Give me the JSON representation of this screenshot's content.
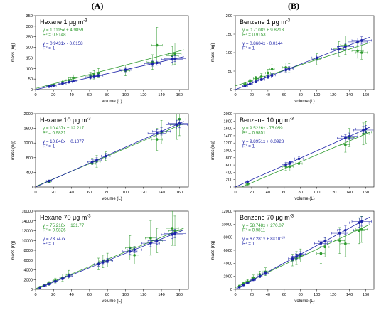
{
  "figure": {
    "col_a": "(A)",
    "col_b": "(B)"
  },
  "colors": {
    "green": "#2e9a2e",
    "blue": "#1c23a8"
  },
  "chart_data": [
    {
      "type": "scatter",
      "title": "Hexane 1 μg m",
      "title_sup": "-3",
      "xlabel": "volume (L)",
      "ylabel": "mass (ng)",
      "xlim": [
        0,
        170
      ],
      "ylim": [
        0,
        350
      ],
      "xticks": [
        0,
        20,
        40,
        60,
        80,
        100,
        120,
        140,
        160
      ],
      "yticks": [
        0,
        50,
        100,
        150,
        200,
        250,
        300,
        350
      ],
      "equations": [
        {
          "text": "y = 1.1115x + 4.9859",
          "color": "green"
        },
        {
          "text": "R² = 0.9148",
          "color": "green"
        },
        {
          "text": "y = 0.9431x - 0.0158",
          "color": "blue"
        },
        {
          "text": "R² = 1",
          "color": "blue"
        }
      ],
      "series": [
        {
          "color": "green",
          "fit": [
            1.1115,
            4.9859
          ],
          "x": [
            15,
            20,
            30,
            37,
            42,
            61,
            65,
            70,
            100,
            130,
            135,
            152,
            155
          ],
          "y": [
            17,
            22,
            35,
            44,
            55,
            64,
            70,
            78,
            90,
            130,
            210,
            160,
            170
          ],
          "xerr": [
            2,
            2,
            3,
            3,
            3,
            4,
            4,
            4,
            5,
            6,
            6,
            7,
            7
          ],
          "yerr": [
            5,
            6,
            10,
            12,
            15,
            18,
            20,
            22,
            25,
            35,
            85,
            45,
            50
          ]
        },
        {
          "color": "blue",
          "fit": [
            0.9431,
            -0.0158
          ],
          "x": [
            15,
            20,
            30,
            37,
            42,
            61,
            65,
            70,
            100,
            130,
            135,
            152,
            155
          ],
          "y": [
            14,
            19,
            28,
            35,
            40,
            58,
            61,
            66,
            94,
            123,
            127,
            143,
            146
          ],
          "xerr": [
            3,
            3,
            4,
            4,
            4,
            5,
            5,
            5,
            6,
            9,
            10,
            12,
            12
          ],
          "yerr": [
            3,
            3,
            4,
            4,
            5,
            7,
            7,
            8,
            10,
            12,
            12,
            14,
            14
          ]
        }
      ]
    },
    {
      "type": "scatter",
      "title": "Benzene 1 μg m",
      "title_sup": "-3",
      "xlabel": "volume (L)",
      "ylabel": "mass (ng)",
      "xlim": [
        0,
        170
      ],
      "ylim": [
        0,
        200
      ],
      "xticks": [
        0,
        20,
        40,
        60,
        80,
        100,
        120,
        140,
        160
      ],
      "yticks": [
        0,
        50,
        100,
        150,
        200
      ],
      "equations": [
        {
          "text": "y = 0.7108x + 9.8213",
          "color": "green"
        },
        {
          "text": "R² = 0.9153",
          "color": "green"
        },
        {
          "text": "y = 0.8604x - 0.0144",
          "color": "blue"
        },
        {
          "text": "R² = 1",
          "color": "blue"
        }
      ],
      "series": [
        {
          "color": "green",
          "fit": [
            0.7108,
            9.8213
          ],
          "x": [
            12,
            18,
            25,
            32,
            40,
            45,
            62,
            66,
            100,
            127,
            135,
            150,
            155
          ],
          "y": [
            14,
            22,
            30,
            35,
            45,
            55,
            60,
            58,
            82,
            110,
            120,
            105,
            100
          ],
          "xerr": [
            2,
            2,
            3,
            3,
            3,
            3,
            4,
            4,
            5,
            6,
            6,
            7,
            7
          ],
          "yerr": [
            4,
            5,
            6,
            8,
            10,
            12,
            12,
            12,
            15,
            20,
            25,
            20,
            18
          ]
        },
        {
          "color": "blue",
          "fit": [
            0.8604,
            -0.0144
          ],
          "x": [
            12,
            18,
            25,
            32,
            40,
            45,
            62,
            66,
            100,
            127,
            135,
            150,
            155
          ],
          "y": [
            10,
            15,
            21,
            27,
            34,
            39,
            53,
            57,
            86,
            109,
            116,
            129,
            133
          ],
          "xerr": [
            3,
            3,
            4,
            4,
            4,
            4,
            5,
            5,
            6,
            9,
            10,
            12,
            12
          ],
          "yerr": [
            2,
            2,
            3,
            3,
            4,
            4,
            5,
            5,
            7,
            8,
            9,
            10,
            10
          ]
        }
      ]
    },
    {
      "type": "scatter",
      "title": "Hexane 10 μg m",
      "title_sup": "-3",
      "xlabel": "volume (L)",
      "ylabel": "mass (ng)",
      "xlim": [
        0,
        170
      ],
      "ylim": [
        0,
        2000
      ],
      "xticks": [
        0,
        20,
        40,
        60,
        80,
        100,
        120,
        140,
        160
      ],
      "yticks": [
        0,
        400,
        800,
        1200,
        1600,
        2000
      ],
      "equations": [
        {
          "text": "y = 10.437x + 12.217",
          "color": "green"
        },
        {
          "text": "R² = 0.9831",
          "color": "green"
        },
        {
          "text": "y = 10.846x + 0.1077",
          "color": "blue"
        },
        {
          "text": "R² = 1",
          "color": "blue"
        }
      ],
      "series": [
        {
          "color": "green",
          "fit": [
            10.437,
            12.217
          ],
          "x": [
            15,
            63,
            68,
            78,
            135,
            140,
            157,
            160
          ],
          "y": [
            150,
            640,
            700,
            840,
            1300,
            1500,
            1700,
            1850
          ],
          "xerr": [
            2,
            4,
            4,
            4,
            6,
            6,
            7,
            7
          ],
          "yerr": [
            40,
            150,
            160,
            120,
            300,
            320,
            400,
            450
          ]
        },
        {
          "color": "blue",
          "fit": [
            10.846,
            0.1077
          ],
          "x": [
            15,
            63,
            68,
            78,
            135,
            140,
            157,
            160
          ],
          "y": [
            163,
            683,
            738,
            846,
            1464,
            1518,
            1703,
            1735
          ],
          "xerr": [
            3,
            5,
            5,
            5,
            10,
            10,
            12,
            12
          ],
          "yerr": [
            20,
            60,
            60,
            70,
            100,
            100,
            120,
            120
          ]
        }
      ]
    },
    {
      "type": "scatter",
      "title": "Benzene 10 μg m",
      "title_sup": "-3",
      "xlabel": "volume (L)",
      "ylabel": "mass (ng)",
      "xlim": [
        0,
        170
      ],
      "ylim": [
        0,
        2000
      ],
      "xticks": [
        0,
        20,
        40,
        60,
        80,
        100,
        120,
        140,
        160
      ],
      "yticks": [
        0,
        200,
        400,
        600,
        800,
        1000,
        1200,
        1400,
        1600,
        1800,
        2000
      ],
      "equations": [
        {
          "text": "y = 9.5226x - 75.059",
          "color": "green"
        },
        {
          "text": "R² = 0.9851",
          "color": "green"
        },
        {
          "text": "y = 9.8951x + 0.0928",
          "color": "blue"
        },
        {
          "text": "R² = 1",
          "color": "blue"
        }
      ],
      "series": [
        {
          "color": "green",
          "fit": [
            9.5226,
            -75.059
          ],
          "x": [
            15,
            62,
            67,
            78,
            135,
            140,
            157,
            160
          ],
          "y": [
            80,
            560,
            560,
            640,
            1150,
            1350,
            1450,
            1500
          ],
          "xerr": [
            2,
            4,
            4,
            4,
            6,
            6,
            7,
            7
          ],
          "yerr": [
            30,
            100,
            120,
            150,
            200,
            250,
            300,
            300
          ]
        },
        {
          "color": "blue",
          "fit": [
            9.8951,
            0.0928
          ],
          "x": [
            15,
            62,
            67,
            78,
            135,
            140,
            157,
            160
          ],
          "y": [
            148,
            614,
            663,
            772,
            1336,
            1385,
            1554,
            1583
          ],
          "xerr": [
            3,
            5,
            5,
            5,
            10,
            10,
            12,
            12
          ],
          "yerr": [
            20,
            50,
            50,
            60,
            90,
            90,
            100,
            100
          ]
        }
      ]
    },
    {
      "type": "scatter",
      "title": "Hexane 70 μg m",
      "title_sup": "-3",
      "xlabel": "volume (L)",
      "ylabel": "mass (ng)",
      "xlim": [
        0,
        170
      ],
      "ylim": [
        0,
        16000
      ],
      "xticks": [
        0,
        20,
        40,
        60,
        80,
        100,
        120,
        140,
        160
      ],
      "yticks": [
        0,
        2000,
        4000,
        6000,
        8000,
        10000,
        12000,
        14000,
        16000
      ],
      "equations": [
        {
          "text": "y = 75.216x + 131.77",
          "color": "green"
        },
        {
          "text": "R² = 0.9826",
          "color": "green"
        },
        {
          "text": "y = 73.747x",
          "color": "blue"
        },
        {
          "text": "R² = 1",
          "color": "blue"
        }
      ],
      "series": [
        {
          "color": "green",
          "fit": [
            75.216,
            131.77
          ],
          "x": [
            5,
            10,
            15,
            22,
            30,
            37,
            70,
            75,
            80,
            105,
            110,
            128,
            135,
            152,
            155
          ],
          "y": [
            450,
            800,
            1200,
            1800,
            2400,
            3000,
            5200,
            5700,
            6000,
            8500,
            7000,
            10500,
            10000,
            12500,
            12000
          ],
          "xerr": [
            1,
            1,
            2,
            2,
            3,
            3,
            4,
            4,
            4,
            5,
            5,
            6,
            6,
            7,
            7
          ],
          "yerr": [
            150,
            250,
            400,
            500,
            700,
            900,
            1200,
            1300,
            1400,
            2500,
            1800,
            3500,
            2500,
            3500,
            3000
          ]
        },
        {
          "color": "blue",
          "fit": [
            73.747,
            0
          ],
          "x": [
            5,
            10,
            15,
            22,
            30,
            37,
            70,
            75,
            80,
            105,
            110,
            128,
            135,
            152,
            155
          ],
          "y": [
            369,
            737,
            1106,
            1622,
            2212,
            2729,
            5162,
            5531,
            5900,
            7743,
            8112,
            9440,
            9956,
            11210,
            11431
          ],
          "xerr": [
            1,
            2,
            2,
            3,
            3,
            4,
            5,
            5,
            6,
            8,
            8,
            10,
            10,
            12,
            12
          ],
          "yerr": [
            60,
            100,
            150,
            200,
            250,
            300,
            400,
            420,
            450,
            600,
            600,
            700,
            750,
            850,
            850
          ]
        }
      ]
    },
    {
      "type": "scatter",
      "title": "Benzene 70 μg m",
      "title_sup": "-3",
      "xlabel": "volume (L)",
      "ylabel": "mass (ng)",
      "xlim": [
        0,
        170
      ],
      "ylim": [
        0,
        12000
      ],
      "xticks": [
        0,
        20,
        40,
        60,
        80,
        100,
        120,
        140,
        160
      ],
      "yticks": [
        0,
        2000,
        4000,
        6000,
        8000,
        10000,
        12000
      ],
      "equations": [
        {
          "text": "y = 58.748x + 270.07",
          "color": "green"
        },
        {
          "text": "R² = 0.9811",
          "color": "green"
        },
        {
          "text": "y = 67.281x + 8×10",
          "sup": "-13",
          "color": "blue"
        },
        {
          "text": "R² = 1",
          "color": "blue"
        }
      ],
      "series": [
        {
          "color": "green",
          "fit": [
            58.748,
            270.07
          ],
          "x": [
            5,
            10,
            15,
            22,
            30,
            37,
            70,
            75,
            80,
            105,
            110,
            128,
            135,
            152,
            155
          ],
          "y": [
            500,
            900,
            1200,
            1800,
            2300,
            2700,
            4500,
            4800,
            5200,
            5500,
            6500,
            7500,
            7000,
            9000,
            9200
          ],
          "xerr": [
            1,
            1,
            2,
            2,
            3,
            3,
            4,
            4,
            4,
            5,
            5,
            6,
            6,
            7,
            7
          ],
          "yerr": [
            150,
            250,
            300,
            400,
            500,
            600,
            900,
            1000,
            1000,
            1500,
            1500,
            2000,
            2000,
            2000,
            2000
          ]
        },
        {
          "color": "blue",
          "fit": [
            67.281,
            0
          ],
          "x": [
            5,
            10,
            15,
            22,
            30,
            37,
            70,
            75,
            80,
            105,
            110,
            128,
            135,
            152,
            155
          ],
          "y": [
            336,
            673,
            1009,
            1480,
            2018,
            2489,
            4710,
            5046,
            5382,
            7065,
            7401,
            8612,
            9083,
            10227,
            10429
          ],
          "xerr": [
            1,
            2,
            2,
            3,
            3,
            4,
            5,
            5,
            6,
            8,
            8,
            10,
            10,
            12,
            12
          ],
          "yerr": [
            50,
            80,
            120,
            160,
            200,
            250,
            350,
            380,
            400,
            500,
            520,
            600,
            650,
            700,
            720
          ]
        }
      ]
    }
  ]
}
